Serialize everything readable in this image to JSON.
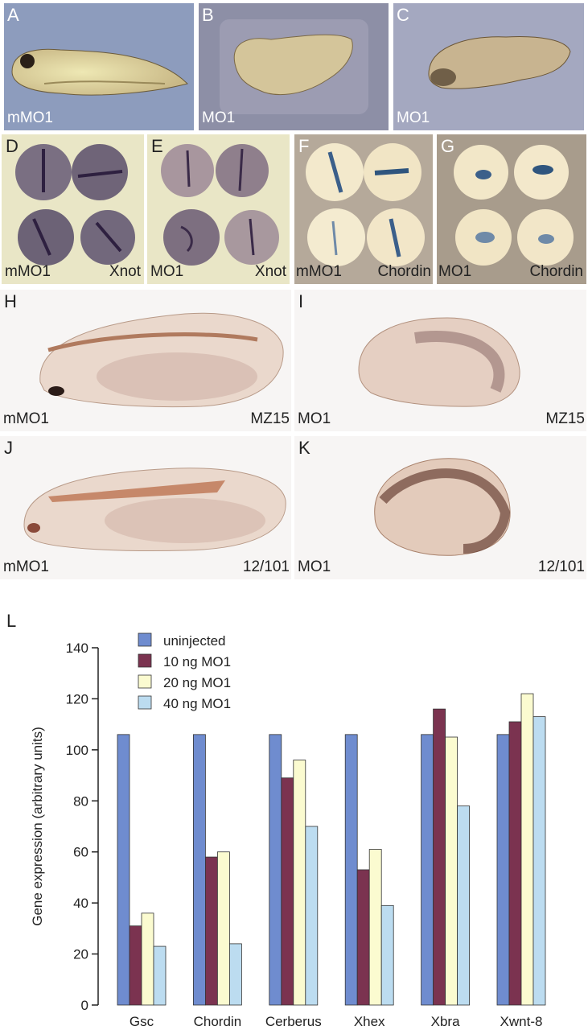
{
  "panels": {
    "A": {
      "letter": "A",
      "caption": "mMO1"
    },
    "B": {
      "letter": "B",
      "caption": "MO1"
    },
    "C": {
      "letter": "C",
      "caption": "MO1"
    },
    "D": {
      "letter": "D",
      "caption_left": "mMO1",
      "caption_right": "Xnot"
    },
    "E": {
      "letter": "E",
      "caption_left": "MO1",
      "caption_right": "Xnot"
    },
    "F": {
      "letter": "F",
      "caption_left": "mMO1",
      "caption_right": "Chordin"
    },
    "G": {
      "letter": "G",
      "caption_left": "MO1",
      "caption_right": "Chordin"
    },
    "H": {
      "letter": "H",
      "caption_left": "mMO1",
      "caption_right": "MZ15"
    },
    "I": {
      "letter": "I",
      "caption_left": "MO1",
      "caption_right": "MZ15"
    },
    "J": {
      "letter": "J",
      "caption_left": "mMO1",
      "caption_right": "12/101"
    },
    "K": {
      "letter": "K",
      "caption_left": "MO1",
      "caption_right": "12/101"
    },
    "L": {
      "letter": "L"
    }
  },
  "colors": {
    "uninjected": "#6f8ccf",
    "10ng": "#7b3350",
    "20ng": "#fbfbd0",
    "40ng": "#bcdcf0"
  },
  "chart_data": {
    "type": "bar",
    "ylabel": "Gene expression (arbitrary units)",
    "ylim": [
      0,
      140
    ],
    "yticks": [
      0,
      20,
      40,
      60,
      80,
      100,
      120,
      140
    ],
    "legend_placement": "top-left",
    "categories": [
      "Gsc",
      "Chordin",
      "Cerberus",
      "Xhex",
      "Xbra",
      "Xwnt-8"
    ],
    "series": [
      {
        "name": "uninjected",
        "values": [
          106,
          106,
          106,
          106,
          106,
          106
        ]
      },
      {
        "name": "10 ng MO1",
        "values": [
          31,
          58,
          89,
          53,
          116,
          111
        ]
      },
      {
        "name": "20 ng MO1",
        "values": [
          36,
          60,
          96,
          61,
          105,
          122
        ]
      },
      {
        "name": "40 ng MO1",
        "values": [
          23,
          24,
          70,
          39,
          78,
          113
        ]
      }
    ]
  }
}
